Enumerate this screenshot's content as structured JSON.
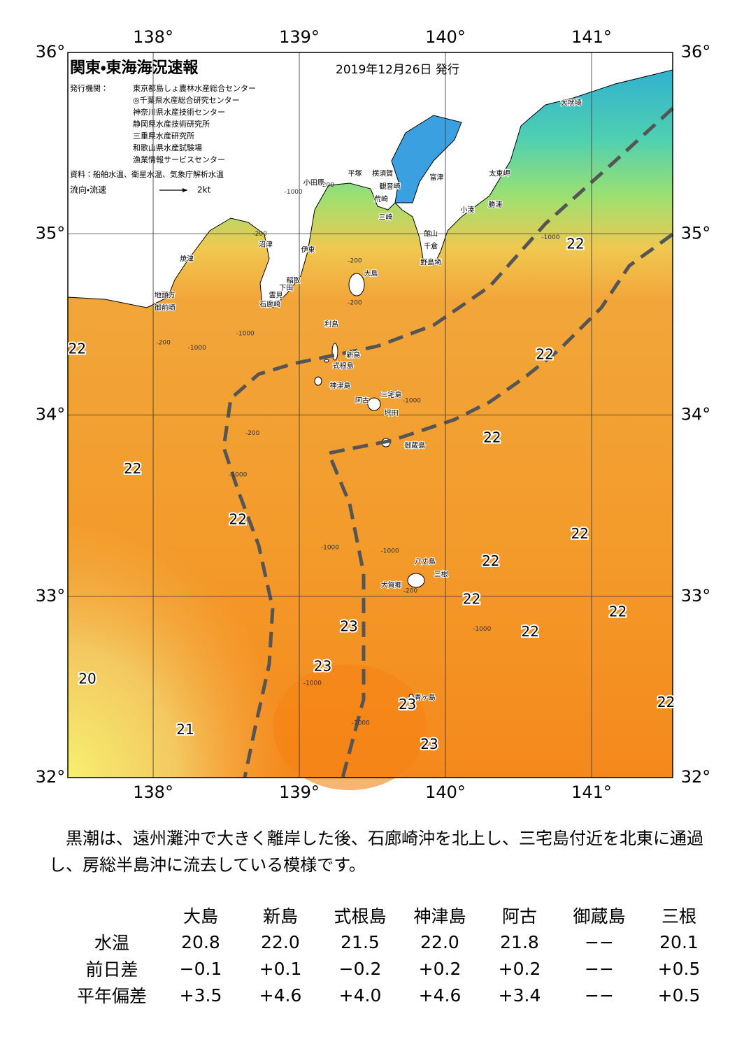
{
  "header": {
    "title": "関東・東海海況速報",
    "date": "2019年12月26日 発行",
    "issuer_label": "発行機関：",
    "issuers": [
      "東京都島しょ農林水産総合センター",
      "◎千葉県水産総合研究センター",
      "神奈川県水産技術センター",
      "静岡県水産技術研究所",
      "三重県水産研究所",
      "和歌山県水産試験場",
      "漁業情報サービスセンター"
    ],
    "sources": "資料：船舶水温、衛星水温、気象庁解析水温",
    "legend_label": "流向・流速",
    "legend_speed": "2kt"
  },
  "map": {
    "xlim": [
      137.416,
      141.555
    ],
    "ylim": [
      32,
      36
    ],
    "xticks": [
      {
        "value": 138,
        "label": "138°"
      },
      {
        "value": 139,
        "label": "139°"
      },
      {
        "value": 140,
        "label": "140°"
      },
      {
        "value": 141,
        "label": "141°"
      }
    ],
    "yticks": [
      {
        "value": 32,
        "label": "32°"
      },
      {
        "value": 33,
        "label": "33°"
      },
      {
        "value": 34,
        "label": "34°"
      },
      {
        "value": 35,
        "label": "35°"
      },
      {
        "value": 36,
        "label": "36°"
      }
    ],
    "temperatures": [
      {
        "value": 22,
        "lon": 140.89,
        "lat": 34.94
      },
      {
        "value": 22,
        "lon": 137.48,
        "lat": 34.36
      },
      {
        "value": 22,
        "lon": 140.68,
        "lat": 34.33
      },
      {
        "value": 22,
        "lon": 140.32,
        "lat": 33.87
      },
      {
        "value": 22,
        "lon": 137.86,
        "lat": 33.7
      },
      {
        "value": 22,
        "lon": 138.58,
        "lat": 33.42
      },
      {
        "value": 22,
        "lon": 140.92,
        "lat": 33.34
      },
      {
        "value": 22,
        "lon": 140.31,
        "lat": 33.19
      },
      {
        "value": 22,
        "lon": 140.18,
        "lat": 32.98
      },
      {
        "value": 22,
        "lon": 141.18,
        "lat": 32.91
      },
      {
        "value": 22,
        "lon": 140.58,
        "lat": 32.8
      },
      {
        "value": 23,
        "lon": 139.34,
        "lat": 32.83
      },
      {
        "value": 23,
        "lon": 139.16,
        "lat": 32.61
      },
      {
        "value": 20,
        "lon": 137.55,
        "lat": 32.54
      },
      {
        "value": 23,
        "lon": 139.74,
        "lat": 32.4
      },
      {
        "value": 22,
        "lon": 141.51,
        "lat": 32.41
      },
      {
        "value": 21,
        "lon": 138.22,
        "lat": 32.26
      },
      {
        "value": 23,
        "lon": 139.89,
        "lat": 32.18
      }
    ],
    "depths": [
      {
        "value": -200,
        "lon": 139.38,
        "lat": 34.85
      },
      {
        "value": -200,
        "lon": 139.38,
        "lat": 34.62
      },
      {
        "value": -200,
        "lon": 138.07,
        "lat": 34.4
      },
      {
        "value": -200,
        "lon": 138.73,
        "lat": 35.0
      },
      {
        "value": -200,
        "lon": 139.19,
        "lat": 35.27
      },
      {
        "value": -200,
        "lon": 139.76,
        "lat": 33.03
      },
      {
        "value": -200,
        "lon": 138.68,
        "lat": 33.9
      },
      {
        "value": -1000,
        "lon": 138.3,
        "lat": 34.37
      },
      {
        "value": -1000,
        "lon": 138.63,
        "lat": 34.45
      },
      {
        "value": -1000,
        "lon": 138.58,
        "lat": 33.67
      },
      {
        "value": -1000,
        "lon": 139.21,
        "lat": 33.27
      },
      {
        "value": -1000,
        "lon": 139.62,
        "lat": 33.25
      },
      {
        "value": -1000,
        "lon": 140.25,
        "lat": 32.82
      },
      {
        "value": -1000,
        "lon": 139.09,
        "lat": 32.52
      },
      {
        "value": -1000,
        "lon": 139.42,
        "lat": 32.3
      },
      {
        "value": -1000,
        "lon": 140.72,
        "lat": 34.98
      },
      {
        "value": -1000,
        "lon": 139.77,
        "lat": 34.08
      },
      {
        "value": -1000,
        "lon": 138.96,
        "lat": 35.23
      }
    ],
    "places": [
      {
        "name": "犬吠埼",
        "lon": 140.86,
        "lat": 35.72
      },
      {
        "name": "太東岬",
        "lon": 140.37,
        "lat": 35.33
      },
      {
        "name": "勝浦",
        "lon": 140.34,
        "lat": 35.16
      },
      {
        "name": "小湊",
        "lon": 140.15,
        "lat": 35.13
      },
      {
        "name": "富津",
        "lon": 139.94,
        "lat": 35.31
      },
      {
        "name": "横須賀",
        "lon": 139.57,
        "lat": 35.33
      },
      {
        "name": "観音崎",
        "lon": 139.62,
        "lat": 35.26
      },
      {
        "name": "荒崎",
        "lon": 139.56,
        "lat": 35.19
      },
      {
        "name": "三崎",
        "lon": 139.59,
        "lat": 35.09
      },
      {
        "name": "平塚",
        "lon": 139.38,
        "lat": 35.33
      },
      {
        "name": "小田原",
        "lon": 139.1,
        "lat": 35.28
      },
      {
        "name": "館山",
        "lon": 139.9,
        "lat": 35.0
      },
      {
        "name": "千倉",
        "lon": 139.9,
        "lat": 34.93
      },
      {
        "name": "野島埼",
        "lon": 139.9,
        "lat": 34.84
      },
      {
        "name": "沼津",
        "lon": 138.77,
        "lat": 34.94
      },
      {
        "name": "伊東",
        "lon": 139.06,
        "lat": 34.91
      },
      {
        "name": "焼津",
        "lon": 138.23,
        "lat": 34.86
      },
      {
        "name": "稲取",
        "lon": 138.96,
        "lat": 34.74
      },
      {
        "name": "下田",
        "lon": 138.91,
        "lat": 34.7
      },
      {
        "name": "雲見",
        "lon": 138.84,
        "lat": 34.66
      },
      {
        "name": "石廊崎",
        "lon": 138.8,
        "lat": 34.61
      },
      {
        "name": "地頭方",
        "lon": 138.08,
        "lat": 34.66
      },
      {
        "name": "御前崎",
        "lon": 138.08,
        "lat": 34.59
      },
      {
        "name": "大島",
        "lon": 139.49,
        "lat": 34.78
      },
      {
        "name": "利島",
        "lon": 139.22,
        "lat": 34.5
      },
      {
        "name": "新島",
        "lon": 139.37,
        "lat": 34.33
      },
      {
        "name": "式根島",
        "lon": 139.3,
        "lat": 34.27
      },
      {
        "name": "神津島",
        "lon": 139.28,
        "lat": 34.16
      },
      {
        "name": "三宅島",
        "lon": 139.63,
        "lat": 34.11
      },
      {
        "name": "阿古",
        "lon": 139.43,
        "lat": 34.08
      },
      {
        "name": "坪田",
        "lon": 139.63,
        "lat": 34.01
      },
      {
        "name": "御蔵島",
        "lon": 139.79,
        "lat": 33.83
      },
      {
        "name": "八丈島",
        "lon": 139.86,
        "lat": 33.19
      },
      {
        "name": "三根",
        "lon": 139.97,
        "lat": 33.12
      },
      {
        "name": "大賀郷",
        "lon": 139.63,
        "lat": 33.06
      },
      {
        "name": "青ヶ島",
        "lon": 139.86,
        "lat": 32.44
      }
    ]
  },
  "text": {
    "paragraph": "　黒潮は、遠州灘沖で大きく離岸した後、石廊崎沖を北上し、三宅島付近を北東に通過し、房総半島沖に流去している模様です。"
  },
  "table": {
    "columns": [
      "大島",
      "新島",
      "式根島",
      "神津島",
      "阿古",
      "御蔵島",
      "三根"
    ],
    "rows": [
      {
        "label": "水温",
        "cells": [
          "20.8",
          "22.0",
          "21.5",
          "22.0",
          "21.8",
          "−−",
          "20.1"
        ]
      },
      {
        "label": "前日差",
        "cells": [
          "−0.1",
          "+0.1",
          "−0.2",
          "+0.2",
          "+0.2",
          "−−",
          "+0.5"
        ]
      },
      {
        "label": "平年偏差",
        "cells": [
          "+3.5",
          "+4.6",
          "+4.0",
          "+4.6",
          "+3.4",
          "−−",
          "+0.5"
        ]
      }
    ]
  }
}
